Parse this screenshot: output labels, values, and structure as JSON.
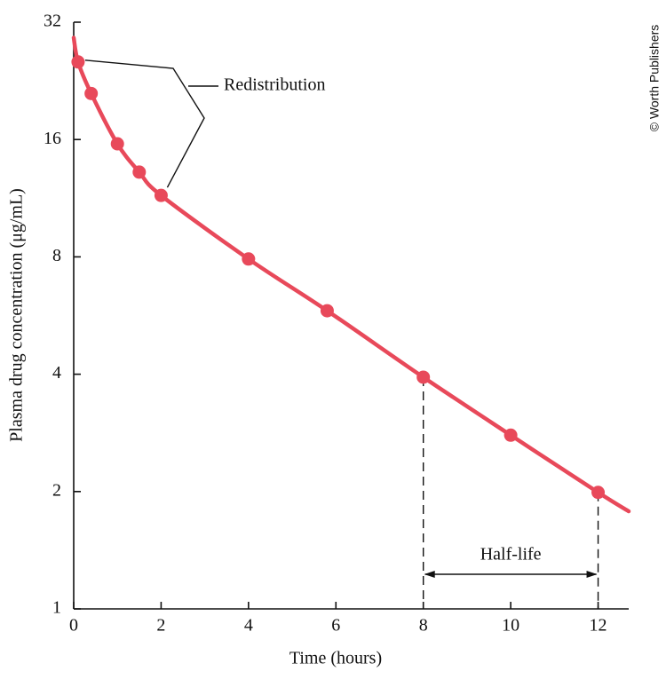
{
  "chart_data": {
    "type": "line",
    "x_label": "Time (hours)",
    "y_label": "Plasma drug concentration (μg/mL)",
    "credit": "© Worth Publishers",
    "xlim": [
      0,
      12.7
    ],
    "xticks": [
      0,
      2,
      4,
      6,
      8,
      10,
      12
    ],
    "ylim": [
      1,
      32
    ],
    "yticks": [
      1,
      2,
      4,
      8,
      16,
      32
    ],
    "y_log_base": 2,
    "series": [
      {
        "style": "line",
        "color": "#e8495a",
        "x": [
          0,
          0.1,
          0.4,
          1,
          1.5,
          2,
          4,
          5.8,
          8,
          10,
          12,
          12.7
        ],
        "values": [
          29.2,
          25.3,
          21.0,
          15.6,
          13.2,
          11.5,
          7.9,
          5.82,
          3.93,
          2.79,
          1.99,
          1.78
        ]
      },
      {
        "style": "markers",
        "color": "#e8495a",
        "x": [
          0.1,
          0.4,
          1,
          1.5,
          2,
          4,
          5.8,
          8,
          10,
          12
        ],
        "values": [
          25.3,
          21.0,
          15.6,
          13.2,
          11.5,
          7.9,
          5.82,
          3.93,
          2.79,
          1.99
        ]
      }
    ],
    "annotations": {
      "redistribution": {
        "text": "Redistribution",
        "points": [
          0,
          4
        ]
      },
      "half_life": {
        "text": "Half-life",
        "x": [
          8,
          12
        ]
      }
    }
  }
}
